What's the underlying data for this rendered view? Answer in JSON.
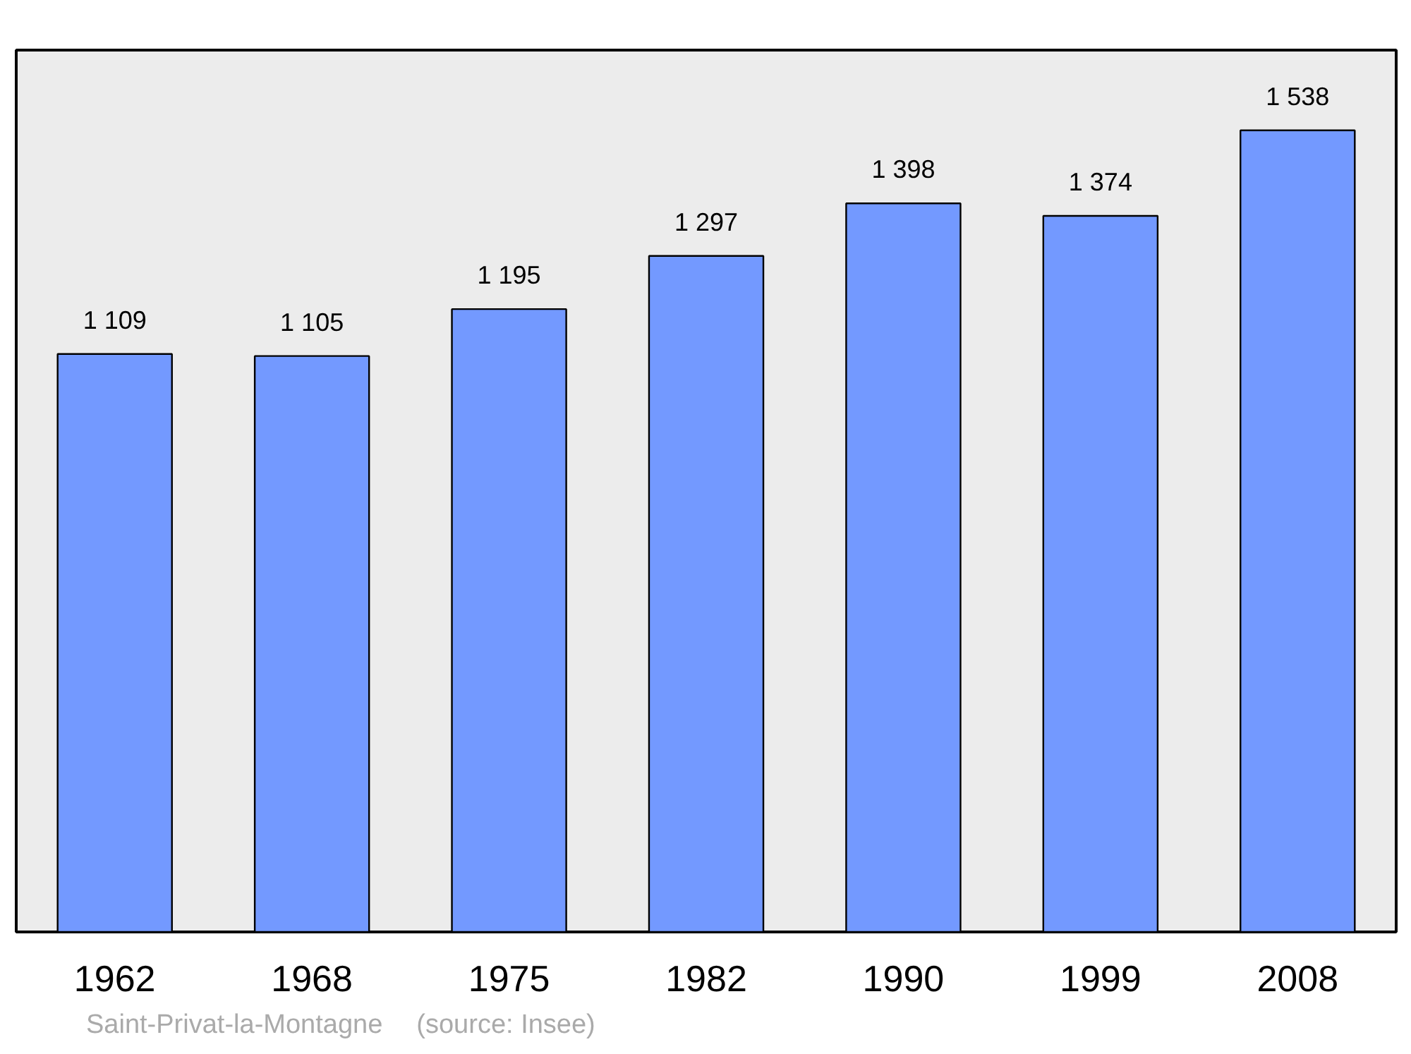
{
  "chart_data": {
    "type": "bar",
    "categories": [
      "1962",
      "1968",
      "1975",
      "1982",
      "1990",
      "1999",
      "2008"
    ],
    "values": [
      1109,
      1105,
      1195,
      1297,
      1398,
      1374,
      1538
    ],
    "value_labels": [
      "1 109",
      "1 105",
      "1 195",
      "1 297",
      "1 398",
      "1 374",
      "1 538"
    ],
    "color": "#7399ff",
    "ylim": [
      0,
      1692
    ],
    "grid": false,
    "annotations": [
      "Saint-Privat-la-Montagne",
      "(source: Insee)"
    ]
  }
}
